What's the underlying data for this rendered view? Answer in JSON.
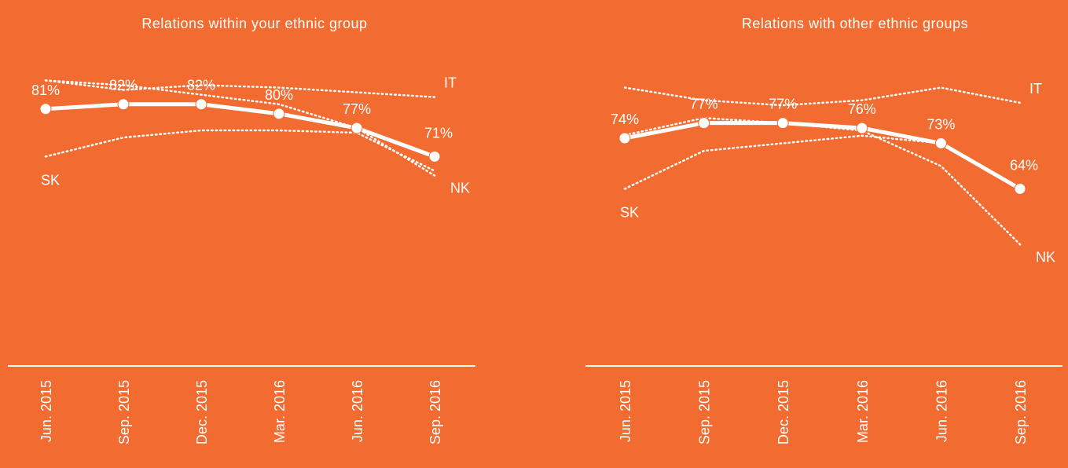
{
  "chart_data": [
    {
      "type": "line",
      "title": "Relations within your ethnic group",
      "categories": [
        "Jun. 2015",
        "Sep. 2015",
        "Dec. 2015",
        "Mar. 2016",
        "Jun. 2016",
        "Sep. 2016"
      ],
      "ylim": [
        27,
        94
      ],
      "series": [
        {
          "color": "#ffffff",
          "line_style": "solid",
          "values": [
            81,
            82,
            82,
            80,
            77,
            71
          ],
          "value_labels": [
            "81%",
            "82%",
            "82%",
            "80%",
            "77%",
            "71%"
          ]
        },
        {
          "name": "IT",
          "color": "#ffffff",
          "line_style": "dotted",
          "label_position": "end-above",
          "values": [
            87,
            85,
            86,
            85.5,
            84.5,
            83.5
          ]
        },
        {
          "name": "SK",
          "color": "#ffffff",
          "line_style": "dotted",
          "label_position": "start-below",
          "values": [
            71,
            75,
            76.5,
            76.5,
            76,
            68
          ]
        },
        {
          "name": "NK",
          "color": "#ffffff",
          "line_style": "dotted",
          "label_position": "end-below",
          "values": [
            87,
            86,
            84,
            82,
            77,
            67
          ]
        }
      ]
    },
    {
      "type": "line",
      "title": "Relations with other ethnic groups",
      "categories": [
        "Jun. 2015",
        "Sep. 2015",
        "Dec. 2015",
        "Mar. 2016",
        "Jun. 2016",
        "Sep. 2016"
      ],
      "ylim": [
        29,
        92
      ],
      "series": [
        {
          "color": "#ffffff",
          "line_style": "solid",
          "values": [
            74,
            77,
            77,
            76,
            73,
            64
          ],
          "value_labels": [
            "74%",
            "77%",
            "77%",
            "76%",
            "73%",
            "64%"
          ]
        },
        {
          "name": "IT",
          "color": "#ffffff",
          "line_style": "dotted",
          "label_position": "end-above",
          "values": [
            84,
            81.5,
            80.5,
            81.5,
            84,
            81
          ]
        },
        {
          "name": "SK",
          "color": "#ffffff",
          "line_style": "dotted",
          "label_position": "start-below",
          "values": [
            64,
            71.5,
            73,
            74.5,
            73,
            64
          ]
        },
        {
          "name": "NK",
          "color": "#ffffff",
          "line_style": "dotted",
          "label_position": "end-below",
          "values": [
            74.6,
            78,
            77,
            75.5,
            68.5,
            53
          ]
        }
      ]
    }
  ]
}
